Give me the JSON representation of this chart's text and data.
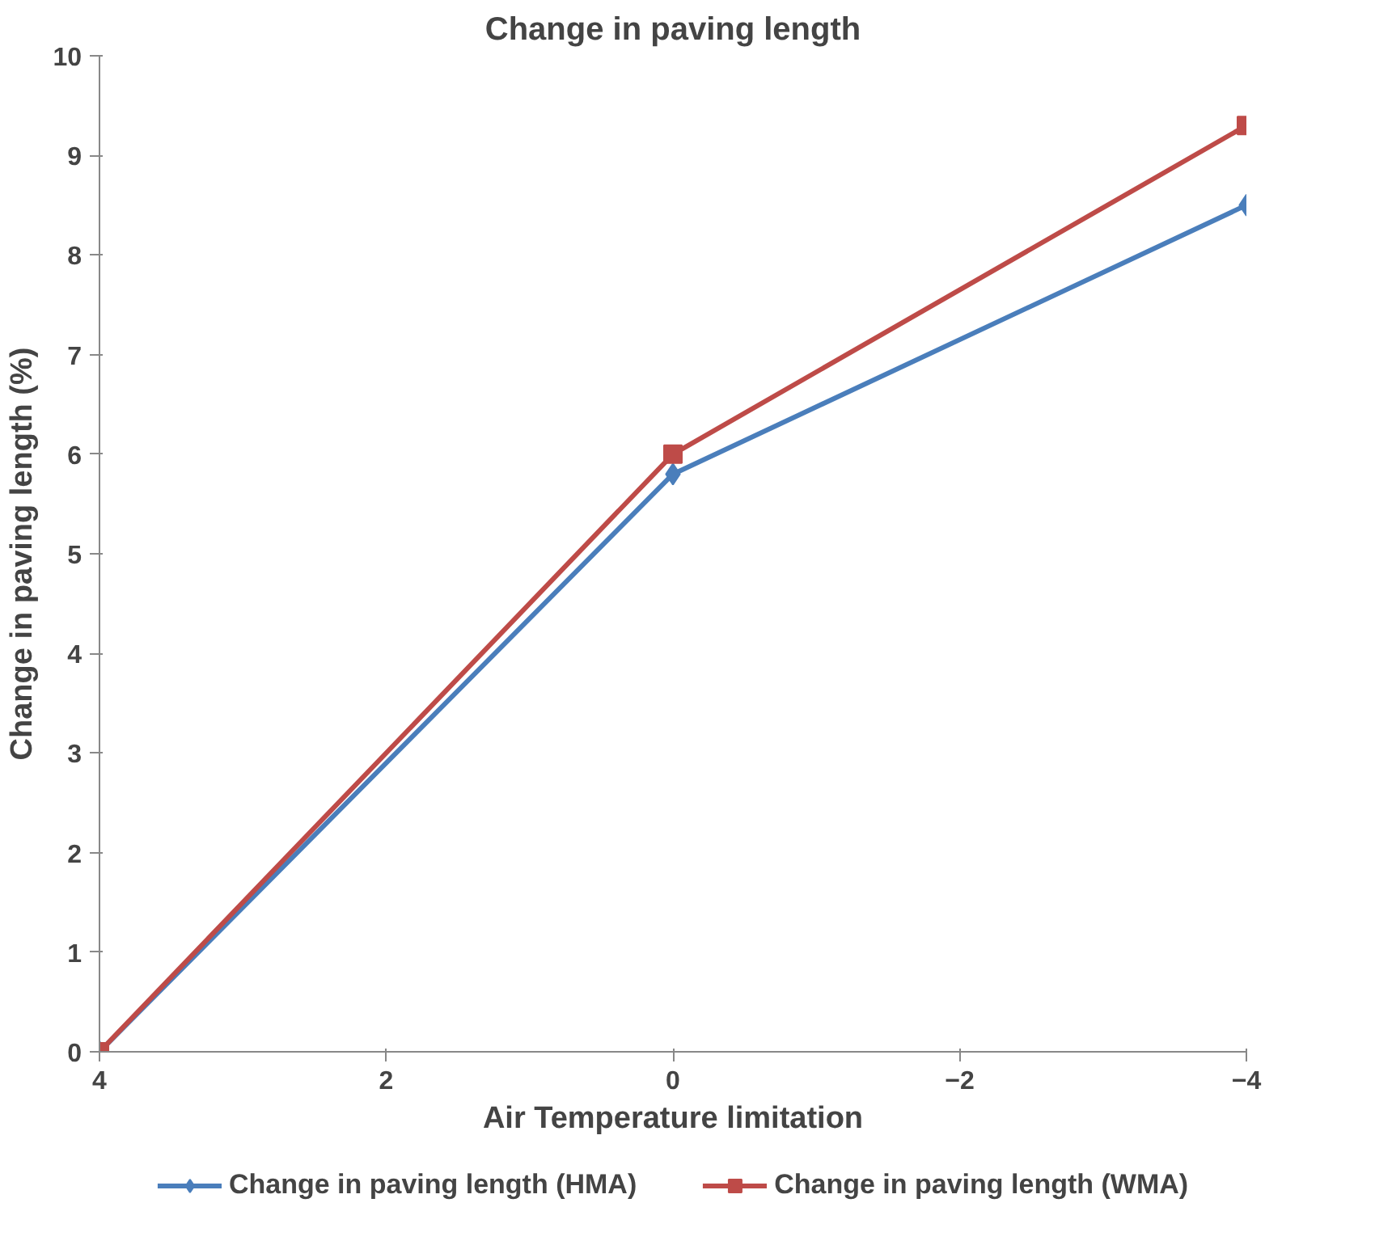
{
  "chart_data": {
    "type": "line",
    "title": "Change in paving length",
    "xlabel": "Air Temperature limitation",
    "ylabel": "Change in paving length (%)",
    "x": [
      4,
      0,
      -4
    ],
    "series": [
      {
        "name": "Change in paving length (HMA)",
        "color": "#4a7ebb",
        "marker": "diamond",
        "values": [
          0,
          5.8,
          8.5
        ]
      },
      {
        "name": "Change in paving length (WMA)",
        "color": "#be4b48",
        "marker": "square",
        "values": [
          0,
          6.0,
          9.3
        ]
      }
    ],
    "xlim": [
      4,
      -4
    ],
    "xticks": [
      4,
      2,
      0,
      -2,
      -4
    ],
    "ylim": [
      0,
      10
    ],
    "yticks": [
      0,
      1,
      2,
      3,
      4,
      5,
      6,
      7,
      8,
      9,
      10
    ],
    "grid": false,
    "legend": "bottom",
    "line_style": "solid"
  }
}
